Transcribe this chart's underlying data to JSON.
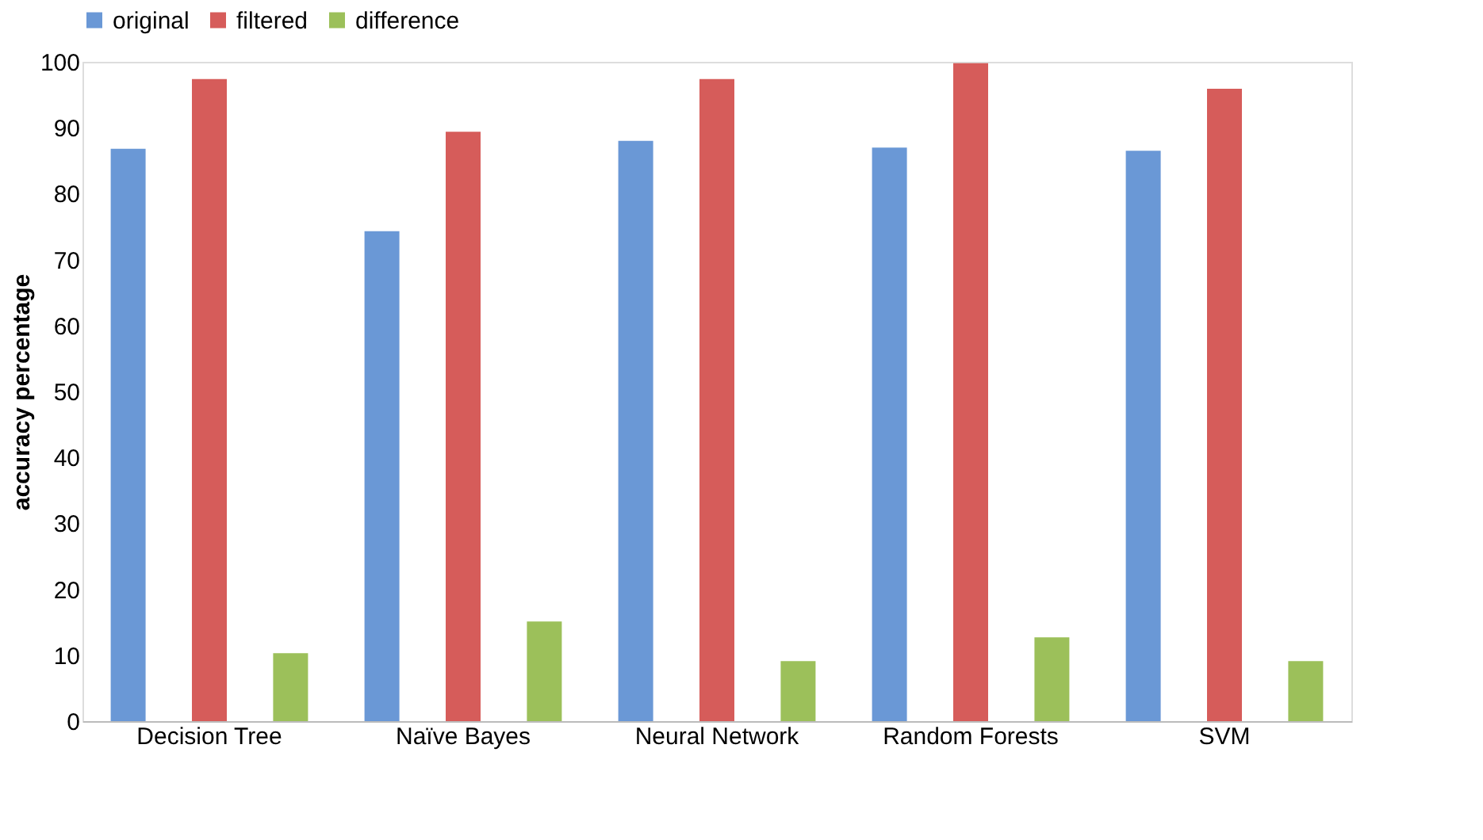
{
  "chart_data": {
    "type": "bar",
    "categories": [
      "Decision Tree",
      "Naïve Bayes",
      "Neural Network",
      "Random Forests",
      "SVM"
    ],
    "ylabel": "accuracy percentage",
    "ylim": [
      0,
      100
    ],
    "yticks": [
      0,
      10,
      20,
      30,
      40,
      50,
      60,
      70,
      80,
      90,
      100
    ],
    "grid": false,
    "legend": "top",
    "series": [
      {
        "name": "original",
        "color": "#6a98d6",
        "values": [
          86.8,
          74.3,
          88,
          87,
          86.5
        ]
      },
      {
        "name": "filtered",
        "color": "#d65c5a",
        "values": [
          97.4,
          89.4,
          97.4,
          99.8,
          95.9
        ]
      },
      {
        "name": "difference",
        "color": "#9cc05a",
        "values": [
          10.3,
          15.1,
          9.1,
          12.7,
          9.1
        ]
      }
    ]
  }
}
